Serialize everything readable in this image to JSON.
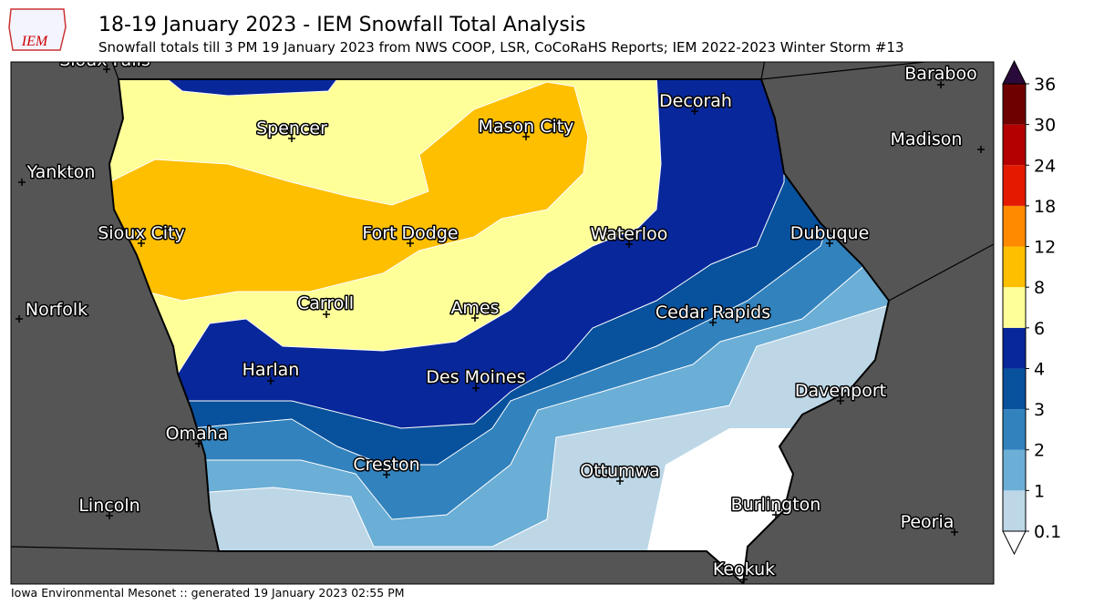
{
  "header": {
    "logo": "IEM",
    "title": "18-19 January 2023 - IEM Snowfall Total Analysis",
    "subtitle": "Snowfall totals till 3 PM 19 January 2023 from NWS COOP, LSR, CoCoRaHS Reports; IEM 2022-2023 Winter Storm #13"
  },
  "map": {
    "cities": [
      "Sioux Falls",
      "Spencer",
      "Mason City",
      "Decorah",
      "Baraboo",
      "Madison",
      "Yankton",
      "Sioux City",
      "Fort Dodge",
      "Waterloo",
      "Dubuque",
      "Norfolk",
      "Carroll",
      "Ames",
      "Cedar Rapids",
      "Harlan",
      "Des Moines",
      "Davenport",
      "Omaha",
      "Creston",
      "Ottumwa",
      "Lincoln",
      "Burlington",
      "Peoria",
      "Keokuk"
    ],
    "background": "#555555",
    "below_color": "#ffffff"
  },
  "colorbar": {
    "ticks": [
      0.1,
      1,
      2,
      3,
      4,
      6,
      8,
      12,
      18,
      24,
      30,
      36
    ],
    "colors": [
      "#bdd7e7",
      "#6baed6",
      "#3182bd",
      "#08519c",
      "#08279a",
      "#ffff99",
      "#fdbf00",
      "#ff8a00",
      "#e31a00",
      "#b40000",
      "#6e0000"
    ],
    "over_color": "#2a0a3a",
    "under_color": "#ffffff"
  },
  "footer": "Iowa Environmental Mesonet :: generated 19 January 2023 02:55 PM"
}
